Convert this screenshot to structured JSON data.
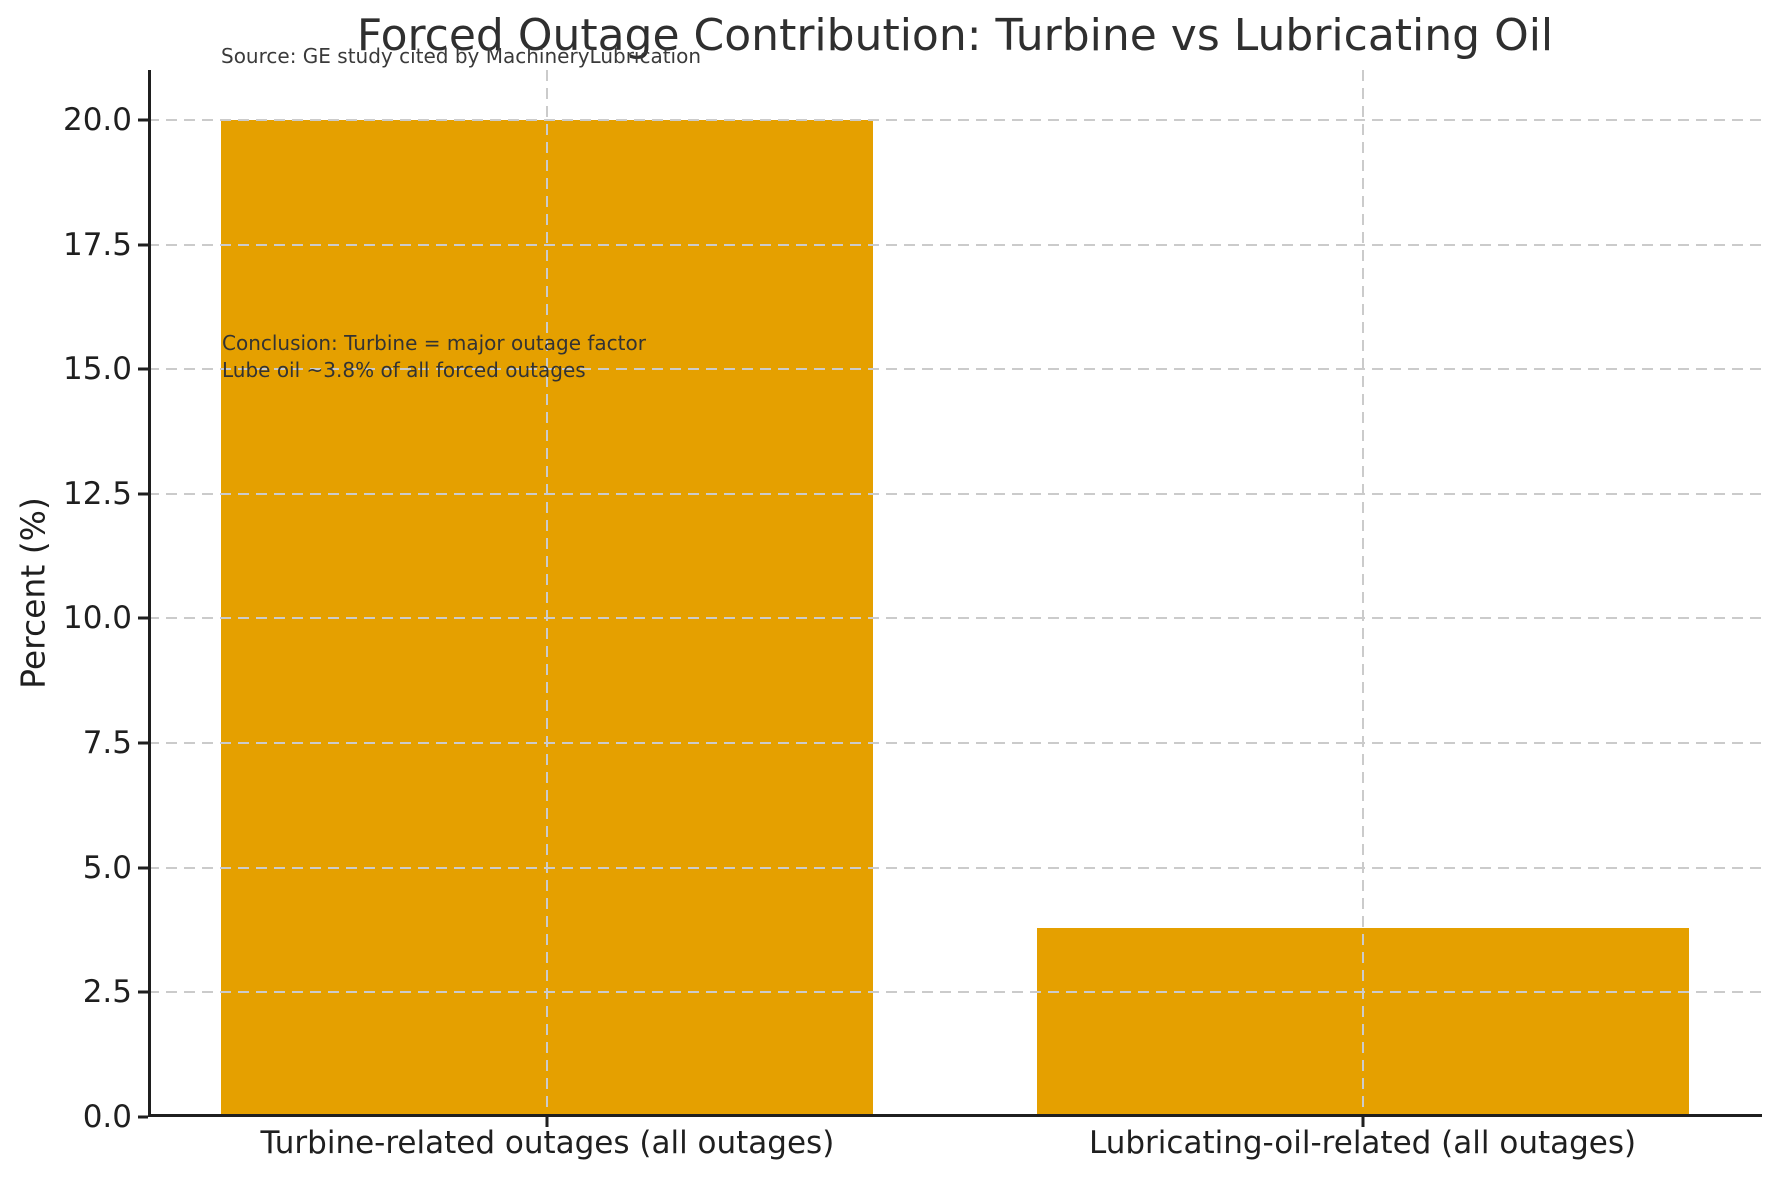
{
  "chart_data": {
    "type": "bar",
    "title": "Forced Outage Contribution: Turbine vs Lubricating Oil",
    "source_note": "Source: GE study cited by MachineryLubrication",
    "categories": [
      "Turbine-related outages (all outages)",
      "Lubricating-oil-related (all outages)"
    ],
    "values": [
      20.0,
      3.8
    ],
    "xlabel": "",
    "ylabel": "Percent (%)",
    "ylim": [
      0,
      21
    ],
    "yticks": [
      0.0,
      2.5,
      5.0,
      7.5,
      10.0,
      12.5,
      15.0,
      17.5,
      20.0
    ],
    "ytick_labels": [
      "0.0",
      "2.5",
      "5.0",
      "7.5",
      "10.0",
      "12.5",
      "15.0",
      "17.5",
      "20.0"
    ],
    "bar_color": "#E5A000",
    "bar_width_fraction": 0.8,
    "grid": {
      "style": "dashed",
      "color": "#cbcbcb",
      "axes": "both",
      "drawn_above_bars": true
    },
    "legend": "none",
    "annotation_line1": "Conclusion: Turbine = major outage factor",
    "annotation_line2": "Lube oil ~3.8% of all forced outages"
  }
}
